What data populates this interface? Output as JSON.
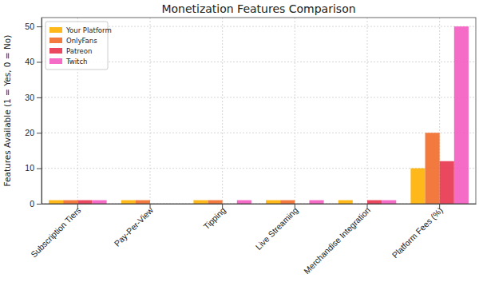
{
  "chart_data": {
    "type": "bar",
    "title": "Monetization Features Comparison",
    "y_label": "Features Available (1 = Yes, 0 = No)",
    "categories": [
      "Subscription Tiers",
      "Pay-Per-View",
      "Tipping",
      "Live Streaming",
      "Merchandise Integration",
      "Platform Fees (%)"
    ],
    "series": [
      {
        "name": "Your Platform",
        "color": "#ffb000",
        "values": [
          1,
          1,
          1,
          1,
          1,
          10
        ]
      },
      {
        "name": "OnlyFans",
        "color": "#f26b2a",
        "values": [
          1,
          1,
          1,
          1,
          0,
          20
        ]
      },
      {
        "name": "Patreon",
        "color": "#e8344e",
        "values": [
          1,
          0,
          0,
          0,
          1,
          12
        ]
      },
      {
        "name": "Twitch",
        "color": "#f45cc0",
        "values": [
          1,
          0,
          1,
          1,
          1,
          50
        ]
      }
    ],
    "ylim": [
      0,
      52.5
    ],
    "yticks": [
      0,
      10,
      20,
      30,
      40,
      50
    ],
    "grid": true,
    "legend": "upper left"
  }
}
